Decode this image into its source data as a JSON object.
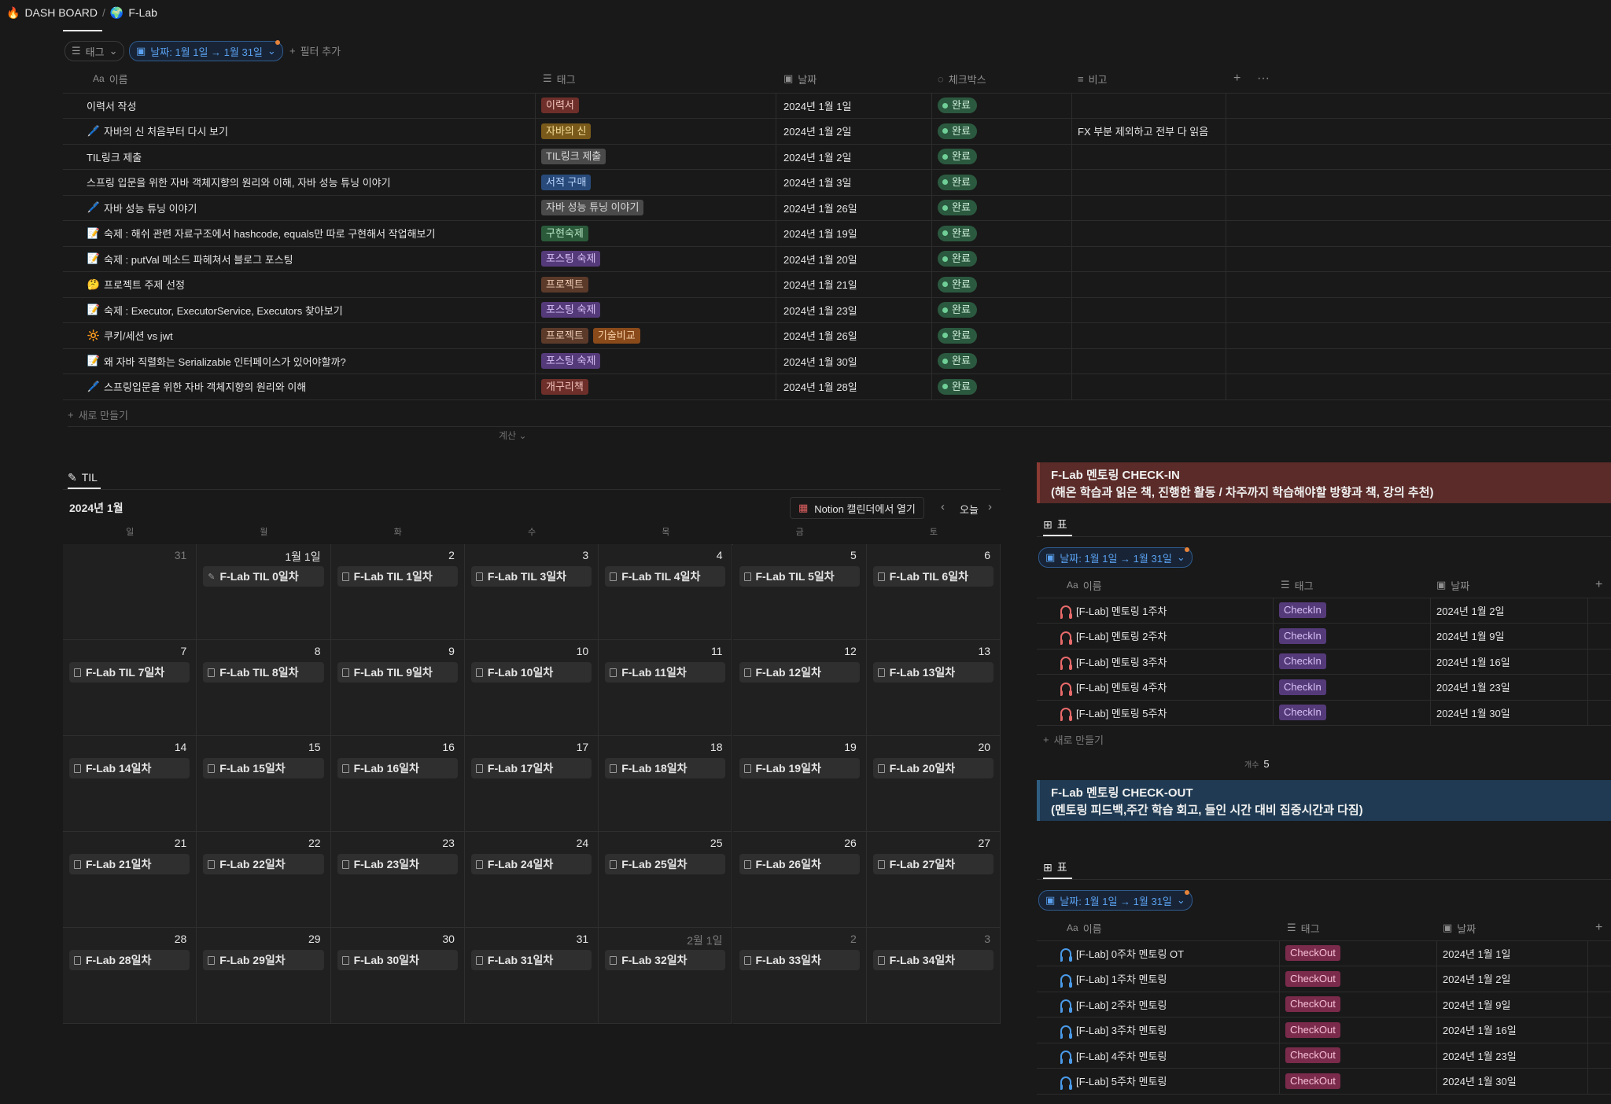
{
  "breadcrumb": {
    "root": "DASH BOARD",
    "sep": "/",
    "page": "F-Lab",
    "root_icon": "fire-icon",
    "page_icon": "globe-icon"
  },
  "filters": {
    "tag": "태그",
    "date": "날짜: 1월 1일 → 1월 31일",
    "add": "필터 추가"
  },
  "db_headers": {
    "name": "이름",
    "tag": "태그",
    "date": "날짜",
    "check": "체크박스",
    "note": "비고",
    "aa": "Aa"
  },
  "db_rows": [
    {
      "icon": "",
      "name": "이력서 작성",
      "tags": [
        {
          "t": "이력서",
          "c": "red"
        }
      ],
      "date": "2024년 1월 1일",
      "status": "완료",
      "note": ""
    },
    {
      "icon": "🖊️",
      "name": "자바의 신 처음부터 다시 보기",
      "tags": [
        {
          "t": "자바의 신",
          "c": "yellow"
        }
      ],
      "date": "2024년 1월 2일",
      "status": "완료",
      "note": "FX 부분 제외하고 전부 다 읽음"
    },
    {
      "icon": "",
      "name": "TIL링크 제출",
      "tags": [
        {
          "t": "TIL링크 제출",
          "c": "gray"
        }
      ],
      "date": "2024년 1월 2일",
      "status": "완료",
      "note": ""
    },
    {
      "icon": "",
      "name": "스프링 입문을 위한 자바 객체지향의 원리와 이해, 자바 성능 튜닝 이야기",
      "tags": [
        {
          "t": "서적 구매",
          "c": "blue"
        }
      ],
      "date": "2024년 1월 3일",
      "status": "완료",
      "note": ""
    },
    {
      "icon": "🖊️",
      "name": "자바 성능 튜닝 이야기",
      "tags": [
        {
          "t": "자바 성능 튜닝 이야기",
          "c": "gray"
        }
      ],
      "date": "2024년 1월 26일",
      "status": "완료",
      "note": ""
    },
    {
      "icon": "📝",
      "name": "숙제 : 해쉬 관련 자료구조에서 hashcode, equals만 따로 구현해서 작업해보기",
      "tags": [
        {
          "t": "구현숙제",
          "c": "green"
        }
      ],
      "date": "2024년 1월 19일",
      "status": "완료",
      "note": ""
    },
    {
      "icon": "📝",
      "name": "숙제 : putVal 메소드 파헤쳐서 블로그 포스팅",
      "tags": [
        {
          "t": "포스팅 숙제",
          "c": "purple"
        }
      ],
      "date": "2024년 1월 20일",
      "status": "완료",
      "note": ""
    },
    {
      "icon": "🤔",
      "name": "프로젝트 주제 선정",
      "tags": [
        {
          "t": "프로젝트",
          "c": "brown"
        }
      ],
      "date": "2024년 1월 21일",
      "status": "완료",
      "note": ""
    },
    {
      "icon": "📝",
      "name": "숙제 : Executor, ExecutorService, Executors 찾아보기",
      "tags": [
        {
          "t": "포스팅 숙제",
          "c": "purple"
        }
      ],
      "date": "2024년 1월 23일",
      "status": "완료",
      "note": ""
    },
    {
      "icon": "🔆",
      "name": "쿠키/세션 vs jwt",
      "tags": [
        {
          "t": "프로젝트",
          "c": "brown"
        },
        {
          "t": "기술비교",
          "c": "orange"
        }
      ],
      "date": "2024년 1월 26일",
      "status": "완료",
      "note": ""
    },
    {
      "icon": "📝",
      "name": "왜 자바 직렬화는 Serializable 인터페이스가 있어야할까?",
      "tags": [
        {
          "t": "포스팅 숙제",
          "c": "purple"
        }
      ],
      "date": "2024년 1월 30일",
      "status": "완료",
      "note": ""
    },
    {
      "icon": "🖊️",
      "name": "스프링입문을 위한 자바 객체지향의 원리와 이해",
      "tags": [
        {
          "t": "개구리책",
          "c": "red"
        }
      ],
      "date": "2024년 1월 28일",
      "status": "완료",
      "note": ""
    }
  ],
  "new_row": "새로 만들기",
  "calc": "계산",
  "calendar": {
    "tab": "TIL",
    "month": "2024년 1월",
    "open_btn": "Notion 캘린더에서 열기",
    "today": "오늘",
    "weekdays": [
      "일",
      "월",
      "화",
      "수",
      "목",
      "금",
      "토"
    ],
    "cells": [
      {
        "n": "31",
        "dim": true,
        "card": ""
      },
      {
        "n": "1월 1일",
        "card": "F-Lab TIL 0일차",
        "pen": true
      },
      {
        "n": "2",
        "card": "F-Lab TIL 1일차"
      },
      {
        "n": "3",
        "card": "F-Lab TIL 3일차"
      },
      {
        "n": "4",
        "card": "F-Lab TIL 4일차"
      },
      {
        "n": "5",
        "card": "F-Lab TIL 5일차"
      },
      {
        "n": "6",
        "card": "F-Lab TIL 6일차"
      },
      {
        "n": "7",
        "card": "F-Lab TIL 7일차"
      },
      {
        "n": "8",
        "card": "F-Lab TIL 8일차"
      },
      {
        "n": "9",
        "card": "F-Lab TIL 9일차"
      },
      {
        "n": "10",
        "card": "F-Lab 10일차"
      },
      {
        "n": "11",
        "card": "F-Lab 11일차"
      },
      {
        "n": "12",
        "card": "F-Lab 12일차"
      },
      {
        "n": "13",
        "card": "F-Lab 13일차"
      },
      {
        "n": "14",
        "card": "F-Lab 14일차"
      },
      {
        "n": "15",
        "card": "F-Lab 15일차"
      },
      {
        "n": "16",
        "card": "F-Lab 16일차"
      },
      {
        "n": "17",
        "card": "F-Lab 17일차"
      },
      {
        "n": "18",
        "card": "F-Lab 18일차"
      },
      {
        "n": "19",
        "card": "F-Lab 19일차"
      },
      {
        "n": "20",
        "card": "F-Lab 20일차"
      },
      {
        "n": "21",
        "card": "F-Lab 21일차"
      },
      {
        "n": "22",
        "card": "F-Lab 22일차"
      },
      {
        "n": "23",
        "card": "F-Lab 23일차"
      },
      {
        "n": "24",
        "card": "F-Lab 24일차"
      },
      {
        "n": "25",
        "card": "F-Lab 25일차"
      },
      {
        "n": "26",
        "card": "F-Lab 26일차"
      },
      {
        "n": "27",
        "card": "F-Lab 27일차"
      },
      {
        "n": "28",
        "card": "F-Lab 28일차"
      },
      {
        "n": "29",
        "card": "F-Lab 29일차"
      },
      {
        "n": "30",
        "card": "F-Lab 30일차"
      },
      {
        "n": "31",
        "card": "F-Lab 31일차"
      },
      {
        "n": "2월 1일",
        "dim": true,
        "card": "F-Lab 32일차"
      },
      {
        "n": "2",
        "dim": true,
        "card": "F-Lab 33일차"
      },
      {
        "n": "3",
        "dim": true,
        "card": "F-Lab 34일차"
      }
    ]
  },
  "checkin": {
    "title": "F-Lab 멘토링 CHECK-IN",
    "subtitle": "(해온 학습과 읽은 책, 진행한 활동 / 차주까지 학습해야할 방향과 책, 강의 추천)",
    "view": "표",
    "filter": "날짜: 1월 1일 → 1월 31일",
    "headers": {
      "name": "이름",
      "tag": "태그",
      "date": "날짜"
    },
    "rows": [
      {
        "name": "[F-Lab] 멘토링 1주차",
        "tag": "CheckIn",
        "date": "2024년 1월 2일"
      },
      {
        "name": "[F-Lab] 멘토링 2주차",
        "tag": "CheckIn",
        "date": "2024년 1월 9일"
      },
      {
        "name": "[F-Lab] 멘토링 3주차",
        "tag": "CheckIn",
        "date": "2024년 1월 16일"
      },
      {
        "name": "[F-Lab] 멘토링 4주차",
        "tag": "CheckIn",
        "date": "2024년 1월 23일"
      },
      {
        "name": "[F-Lab] 멘토링 5주차",
        "tag": "CheckIn",
        "date": "2024년 1월 30일"
      }
    ],
    "new_row": "새로 만들기",
    "count_label": "개수",
    "count": "5"
  },
  "checkout": {
    "title": "F-Lab 멘토링 CHECK-OUT",
    "subtitle": "(멘토링 피드백,주간 학습 회고, 들인 시간 대비 집중시간과 다짐)",
    "view": "표",
    "filter": "날짜: 1월 1일 → 1월 31일",
    "headers": {
      "name": "이름",
      "tag": "태그",
      "date": "날짜"
    },
    "rows": [
      {
        "name": "[F-Lab] 0주차 멘토링 OT",
        "tag": "CheckOut",
        "date": "2024년 1월 1일"
      },
      {
        "name": "[F-Lab] 1주차 멘토링",
        "tag": "CheckOut",
        "date": "2024년 1월 2일"
      },
      {
        "name": "[F-Lab] 2주차 멘토링",
        "tag": "CheckOut",
        "date": "2024년 1월 9일"
      },
      {
        "name": "[F-Lab] 3주차 멘토링",
        "tag": "CheckOut",
        "date": "2024년 1월 16일"
      },
      {
        "name": "[F-Lab] 4주차 멘토링",
        "tag": "CheckOut",
        "date": "2024년 1월 23일"
      },
      {
        "name": "[F-Lab] 5주차 멘토링",
        "tag": "CheckOut",
        "date": "2024년 1월 30일"
      }
    ]
  },
  "colors": {
    "background": "#191919",
    "accent": "#5aa0f0",
    "checkin_callout": "#5a2b28",
    "checkout_callout": "#1f3a52",
    "done": "#2b593f"
  }
}
